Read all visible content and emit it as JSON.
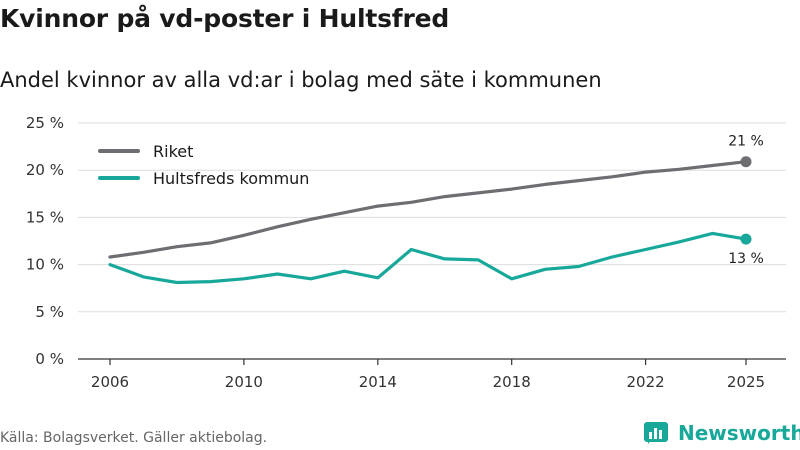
{
  "header": {
    "title": "Kvinnor på vd-poster i Hultsfred",
    "subtitle": "Andel kvinnor av alla vd:ar i bolag med säte i kommunen"
  },
  "footer": {
    "source": "Källa: Bolagsverket. Gäller aktiebolag.",
    "brand": "Newsworthy"
  },
  "colors": {
    "riket": "#6e6e72",
    "hultsfred": "#17a89a",
    "grid": "#dddddd",
    "axis": "#333333"
  },
  "chart_data": {
    "type": "line",
    "x": [
      2006,
      2007,
      2008,
      2009,
      2010,
      2011,
      2012,
      2013,
      2014,
      2015,
      2016,
      2017,
      2018,
      2019,
      2020,
      2021,
      2022,
      2023,
      2024,
      2025
    ],
    "series": [
      {
        "name": "Riket",
        "color": "#6e6e72",
        "values": [
          10.8,
          11.3,
          11.9,
          12.3,
          13.1,
          14.0,
          14.8,
          15.5,
          16.2,
          16.6,
          17.2,
          17.6,
          18.0,
          18.5,
          18.9,
          19.3,
          19.8,
          20.1,
          20.5,
          20.9
        ],
        "end_label": "21 %"
      },
      {
        "name": "Hultsfreds kommun",
        "color": "#17a89a",
        "values": [
          10.0,
          8.7,
          8.1,
          8.2,
          8.5,
          9.0,
          8.5,
          9.3,
          8.6,
          11.6,
          10.6,
          10.5,
          8.5,
          9.5,
          9.8,
          10.8,
          11.6,
          12.4,
          13.3,
          12.7
        ],
        "end_label": "13 %"
      }
    ],
    "ylim": [
      0,
      25
    ],
    "yticks": [
      0,
      5,
      10,
      15,
      20,
      25
    ],
    "ytick_labels": [
      "0 %",
      "5 %",
      "10 %",
      "15 %",
      "20 %",
      "25 %"
    ],
    "xticks": [
      2006,
      2010,
      2014,
      2018,
      2022,
      2025
    ],
    "xtick_labels": [
      "2006",
      "2010",
      "2014",
      "2018",
      "2022",
      "2025"
    ],
    "legend": [
      "Riket",
      "Hultsfreds kommun"
    ],
    "legend_position": "top-left",
    "grid": true,
    "xlabel": "",
    "ylabel": ""
  }
}
